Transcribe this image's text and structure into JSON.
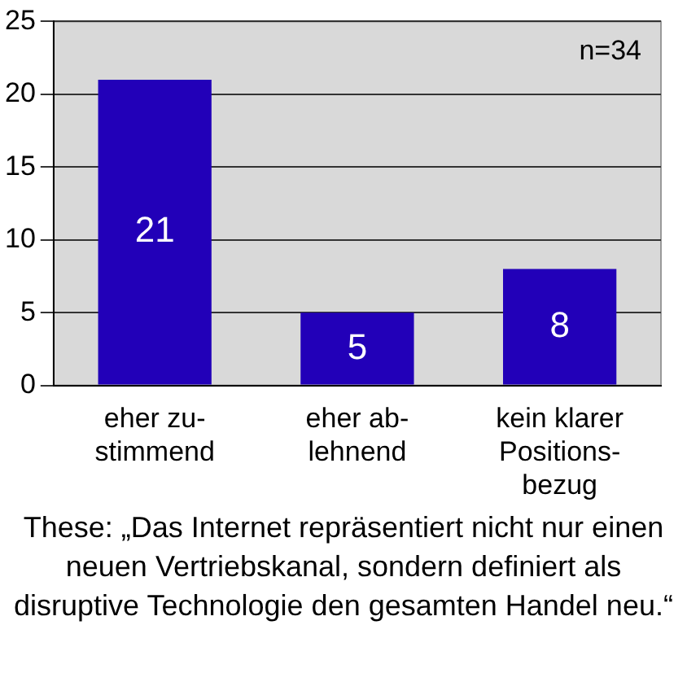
{
  "chart_data": {
    "type": "bar",
    "categories": [
      "eher zu-\nstimmend",
      "eher ab-\nlehnend",
      "kein klarer\nPositions-\nbezug"
    ],
    "values": [
      21,
      5,
      8
    ],
    "color": "#2200b8",
    "ylim": [
      0,
      25
    ],
    "yticks": [
      0,
      5,
      10,
      15,
      20,
      25
    ],
    "grid": "y",
    "data_labels": true,
    "legend": false,
    "annotations": [
      {
        "text": "n=34"
      },
      "These: „Das Internet repräsentiert nicht nur einen neuen Vertriebskanal, sondern definiert als disruptive Technologie den gesamten Handel neu.“"
    ]
  }
}
